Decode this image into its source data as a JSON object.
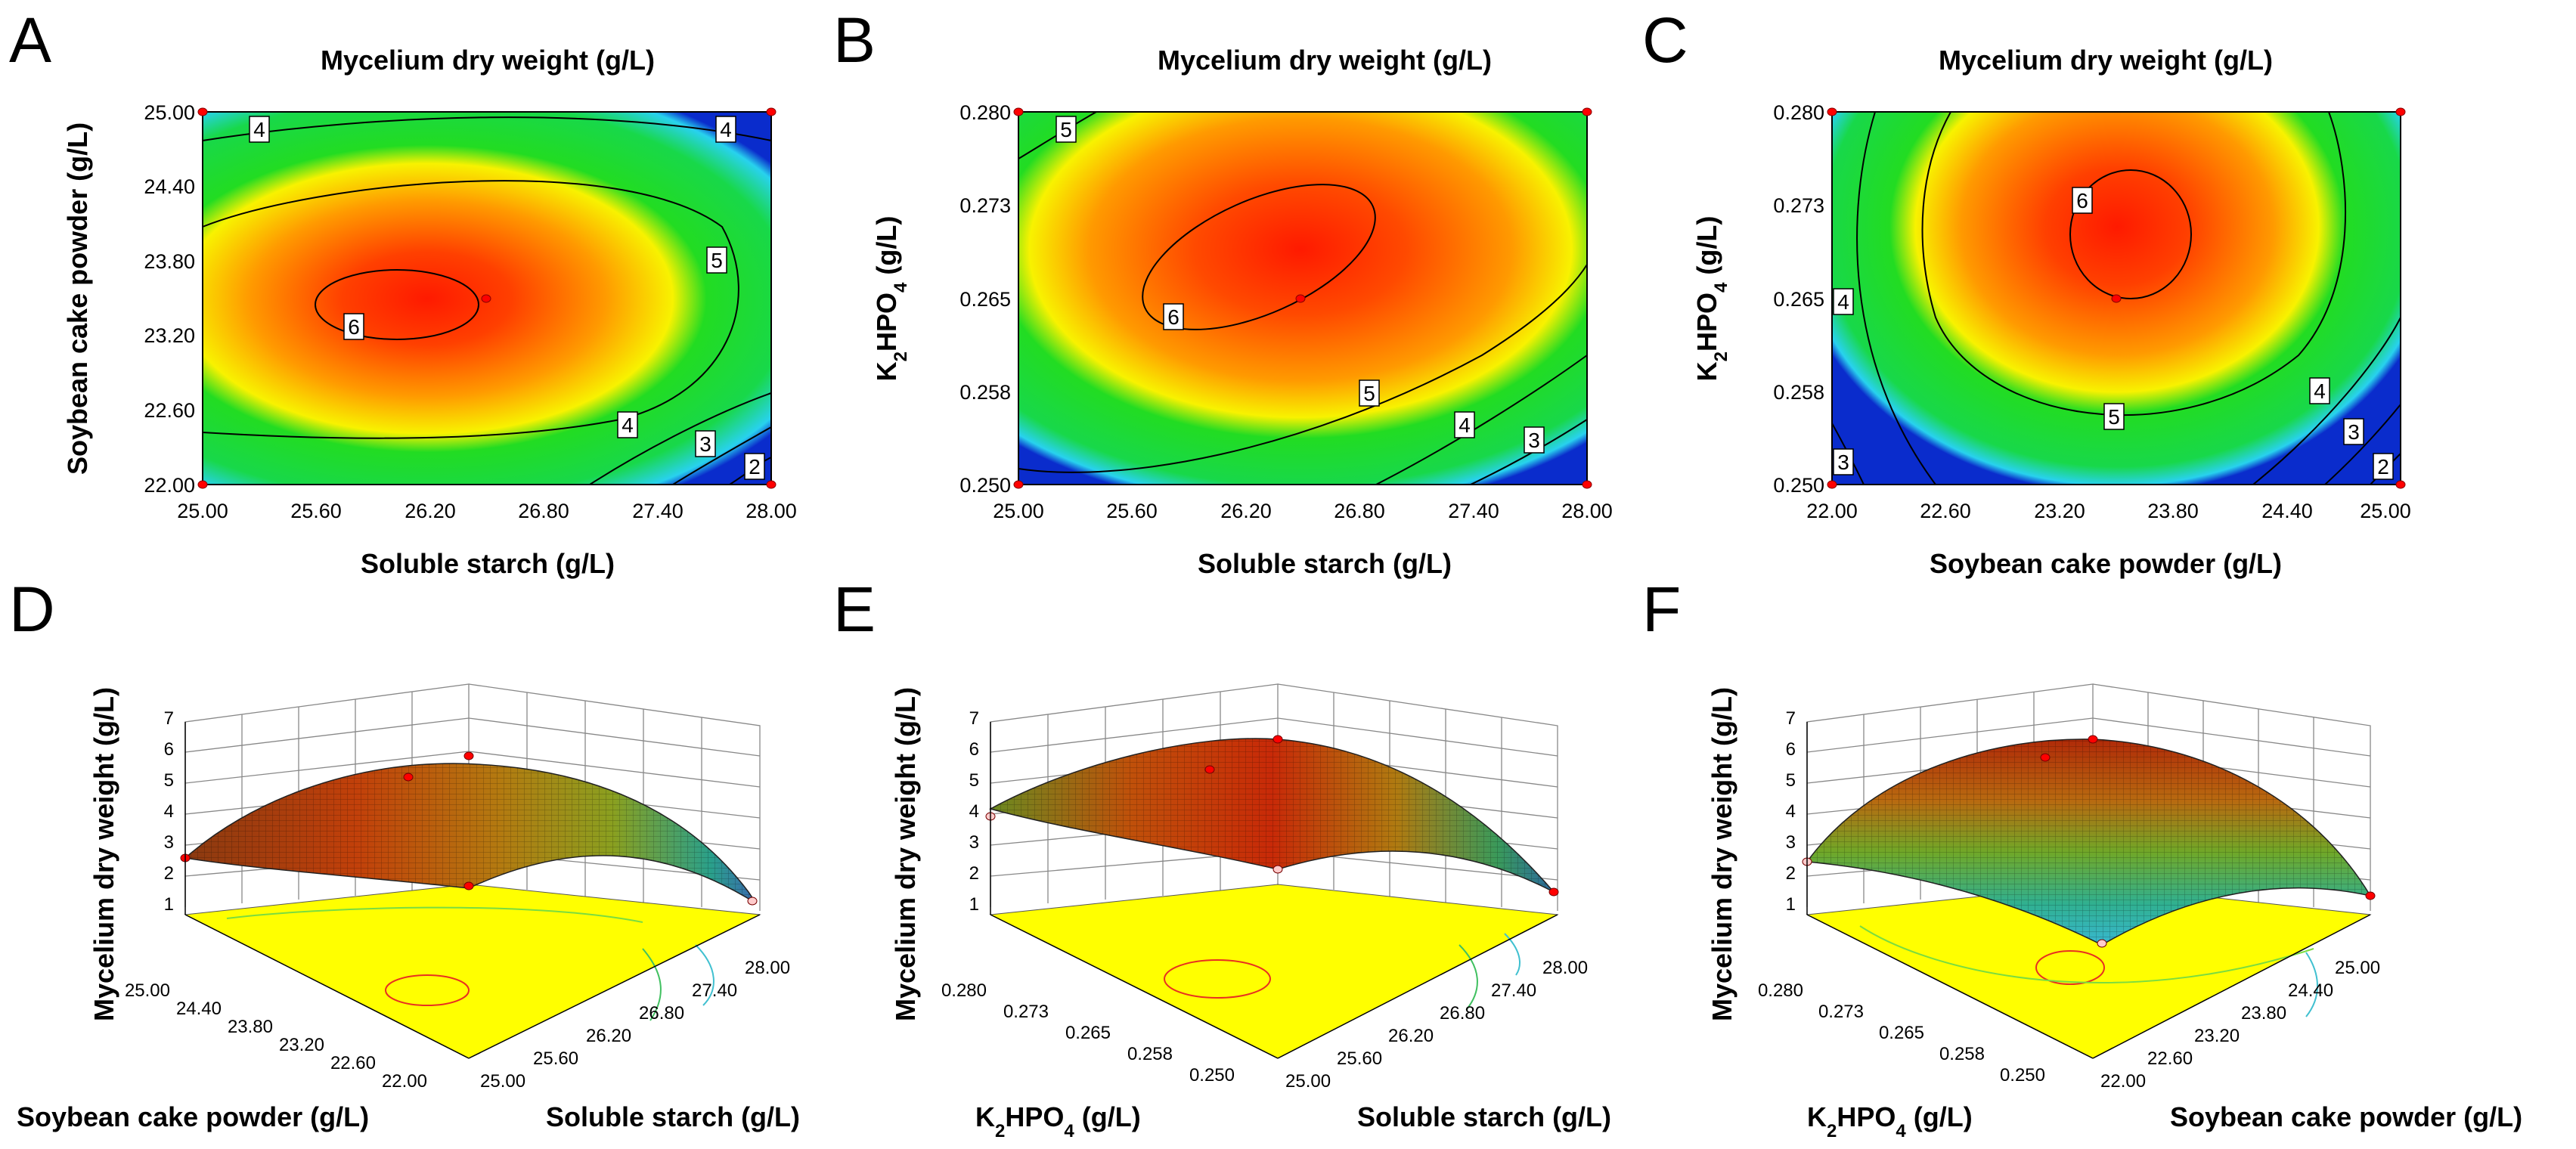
{
  "panel_letters": [
    "A",
    "B",
    "C",
    "D",
    "E",
    "F"
  ],
  "colors": {
    "low": "#0a2ccc",
    "cyan": "#28d2ee",
    "green": "#22dc22",
    "yellow": "#f8f200",
    "orange": "#ff9a00",
    "red": "#ff1a00",
    "floor": "#ffff00",
    "design_point": "#ff0000"
  },
  "chart_data": [
    {
      "type": "contour",
      "panel": "A",
      "title": "Mycelium dry weight (g/L)",
      "xlabel": "Soluble starch (g/L)",
      "ylabel": "Soybean cake powder (g/L)",
      "xticks": [
        "25.00",
        "25.60",
        "26.20",
        "26.80",
        "27.40",
        "28.00"
      ],
      "yticks": [
        "22.00",
        "22.60",
        "23.20",
        "23.80",
        "24.40",
        "25.00"
      ],
      "xlim": [
        25.0,
        28.0
      ],
      "ylim": [
        22.0,
        25.0
      ],
      "contour_levels": [
        2,
        3,
        4,
        5,
        6
      ],
      "max_point": [
        26.0,
        23.45
      ],
      "max_value": 6.35,
      "center_point": [
        26.5,
        23.5
      ],
      "design_points": [
        [
          25.0,
          22.0
        ],
        [
          25.0,
          25.0
        ],
        [
          28.0,
          22.0
        ],
        [
          28.0,
          25.0
        ]
      ]
    },
    {
      "type": "contour",
      "panel": "B",
      "title": "Mycelium dry weight (g/L)",
      "xlabel": "Soluble starch (g/L)",
      "ylabel_main": "K",
      "ylabel_sub1": "2",
      "ylabel_mid": "HPO",
      "ylabel_sub2": "4",
      "ylabel_tail": " (g/L)",
      "xticks": [
        "25.00",
        "25.60",
        "26.20",
        "26.80",
        "27.40",
        "28.00"
      ],
      "yticks": [
        "0.250",
        "0.258",
        "0.265",
        "0.273",
        "0.280"
      ],
      "xlim": [
        25.0,
        28.0
      ],
      "ylim": [
        0.25,
        0.28
      ],
      "contour_levels": [
        3,
        4,
        5,
        6
      ],
      "max_point": [
        26.25,
        0.2675
      ],
      "max_value": 6.3,
      "center_point": [
        26.5,
        0.265
      ],
      "design_points": [
        [
          25.0,
          0.25
        ],
        [
          25.0,
          0.28
        ],
        [
          28.0,
          0.25
        ],
        [
          28.0,
          0.28
        ]
      ]
    },
    {
      "type": "contour",
      "panel": "C",
      "title": "Mycelium dry weight (g/L)",
      "xlabel": "Soybean cake powder (g/L)",
      "ylabel_main": "K",
      "ylabel_sub1": "2",
      "ylabel_mid": "HPO",
      "ylabel_sub2": "4",
      "ylabel_tail": " (g/L)",
      "xticks": [
        "22.00",
        "22.60",
        "23.20",
        "23.80",
        "24.40",
        "25.00"
      ],
      "yticks": [
        "0.250",
        "0.258",
        "0.265",
        "0.273",
        "0.280"
      ],
      "xlim": [
        22.0,
        25.0
      ],
      "ylim": [
        0.25,
        0.28
      ],
      "contour_levels": [
        2,
        3,
        4,
        5,
        6
      ],
      "max_point": [
        23.55,
        0.2695
      ],
      "max_value": 6.25,
      "center_point": [
        23.5,
        0.265
      ],
      "design_points": [
        [
          22.0,
          0.25
        ],
        [
          22.0,
          0.28
        ],
        [
          25.0,
          0.25
        ],
        [
          25.0,
          0.28
        ]
      ]
    },
    {
      "type": "surface3d",
      "panel": "D",
      "zlabel": "Mycelium dry weight (g/L)",
      "xlabel": "Soybean cake powder (g/L)",
      "ylabel": "Soluble starch (g/L)",
      "zticks": [
        "1",
        "2",
        "3",
        "4",
        "5",
        "6",
        "7"
      ],
      "xticks": [
        "22.00",
        "22.60",
        "23.20",
        "23.80",
        "24.40",
        "25.00"
      ],
      "yticks": [
        "25.00",
        "25.60",
        "26.20",
        "26.80",
        "27.40",
        "28.00"
      ],
      "zlim": [
        1,
        7
      ]
    },
    {
      "type": "surface3d",
      "panel": "E",
      "zlabel": "Mycelium dry weight (g/L)",
      "xlabel_main": "K",
      "xlabel_sub1": "2",
      "xlabel_mid": "HPO",
      "xlabel_sub2": "4",
      "xlabel_tail": " (g/L)",
      "ylabel": "Soluble starch (g/L)",
      "zticks": [
        "1",
        "2",
        "3",
        "4",
        "5",
        "6",
        "7"
      ],
      "xticks": [
        "0.250",
        "0.258",
        "0.265",
        "0.273",
        "0.280"
      ],
      "yticks": [
        "25.00",
        "25.60",
        "26.20",
        "26.80",
        "27.40",
        "28.00"
      ],
      "zlim": [
        1,
        7
      ]
    },
    {
      "type": "surface3d",
      "panel": "F",
      "zlabel": "Mycelium dry weight (g/L)",
      "xlabel_main": "K",
      "xlabel_sub1": "2",
      "xlabel_mid": "HPO",
      "xlabel_sub2": "4",
      "xlabel_tail": " (g/L)",
      "ylabel": "Soybean cake powder (g/L)",
      "zticks": [
        "1",
        "2",
        "3",
        "4",
        "5",
        "6",
        "7"
      ],
      "xticks": [
        "0.250",
        "0.258",
        "0.265",
        "0.273",
        "0.280"
      ],
      "yticks": [
        "22.00",
        "22.60",
        "23.20",
        "23.80",
        "24.40",
        "25.00"
      ],
      "zlim": [
        1,
        7
      ]
    }
  ]
}
